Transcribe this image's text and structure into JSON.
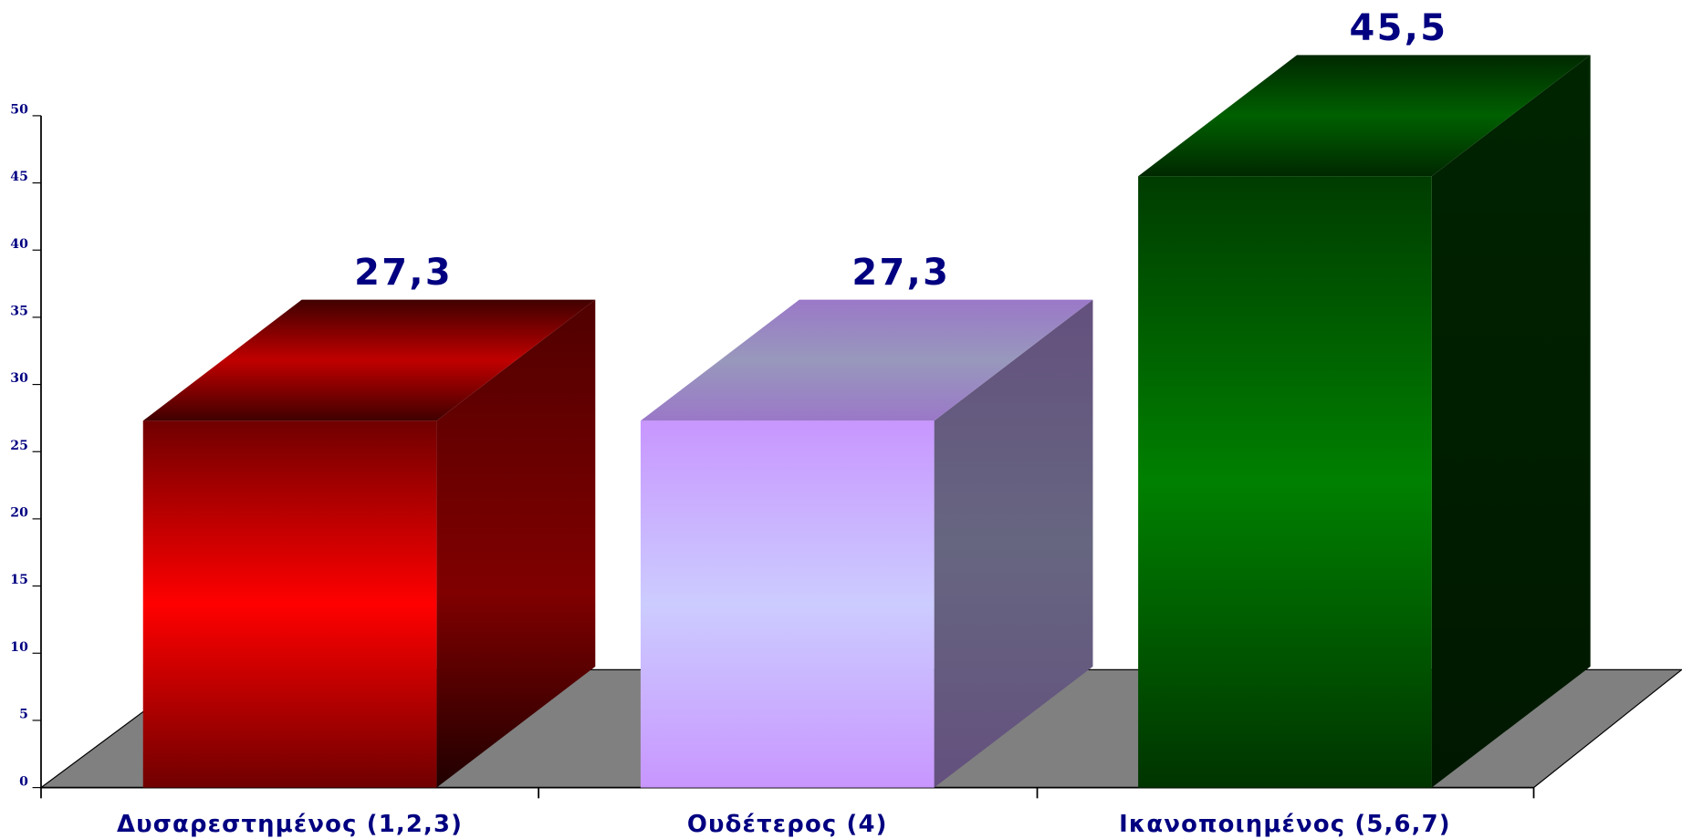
{
  "chart_data": {
    "type": "bar3d",
    "categories": [
      "Δυσαρεστημένος (1,2,3)",
      "Ουδέτερος (4)",
      "Ικανοποιημένος (5,6,7)"
    ],
    "values": [
      27.3,
      27.3,
      45.5
    ],
    "value_labels": [
      "27,3",
      "27,3",
      "45,5"
    ],
    "colors": [
      "#ff0000",
      "#ccccff",
      "#008000"
    ],
    "ylim": [
      0,
      50
    ],
    "yticks": [
      0,
      5,
      10,
      15,
      20,
      25,
      30,
      35,
      40,
      45,
      50
    ]
  }
}
